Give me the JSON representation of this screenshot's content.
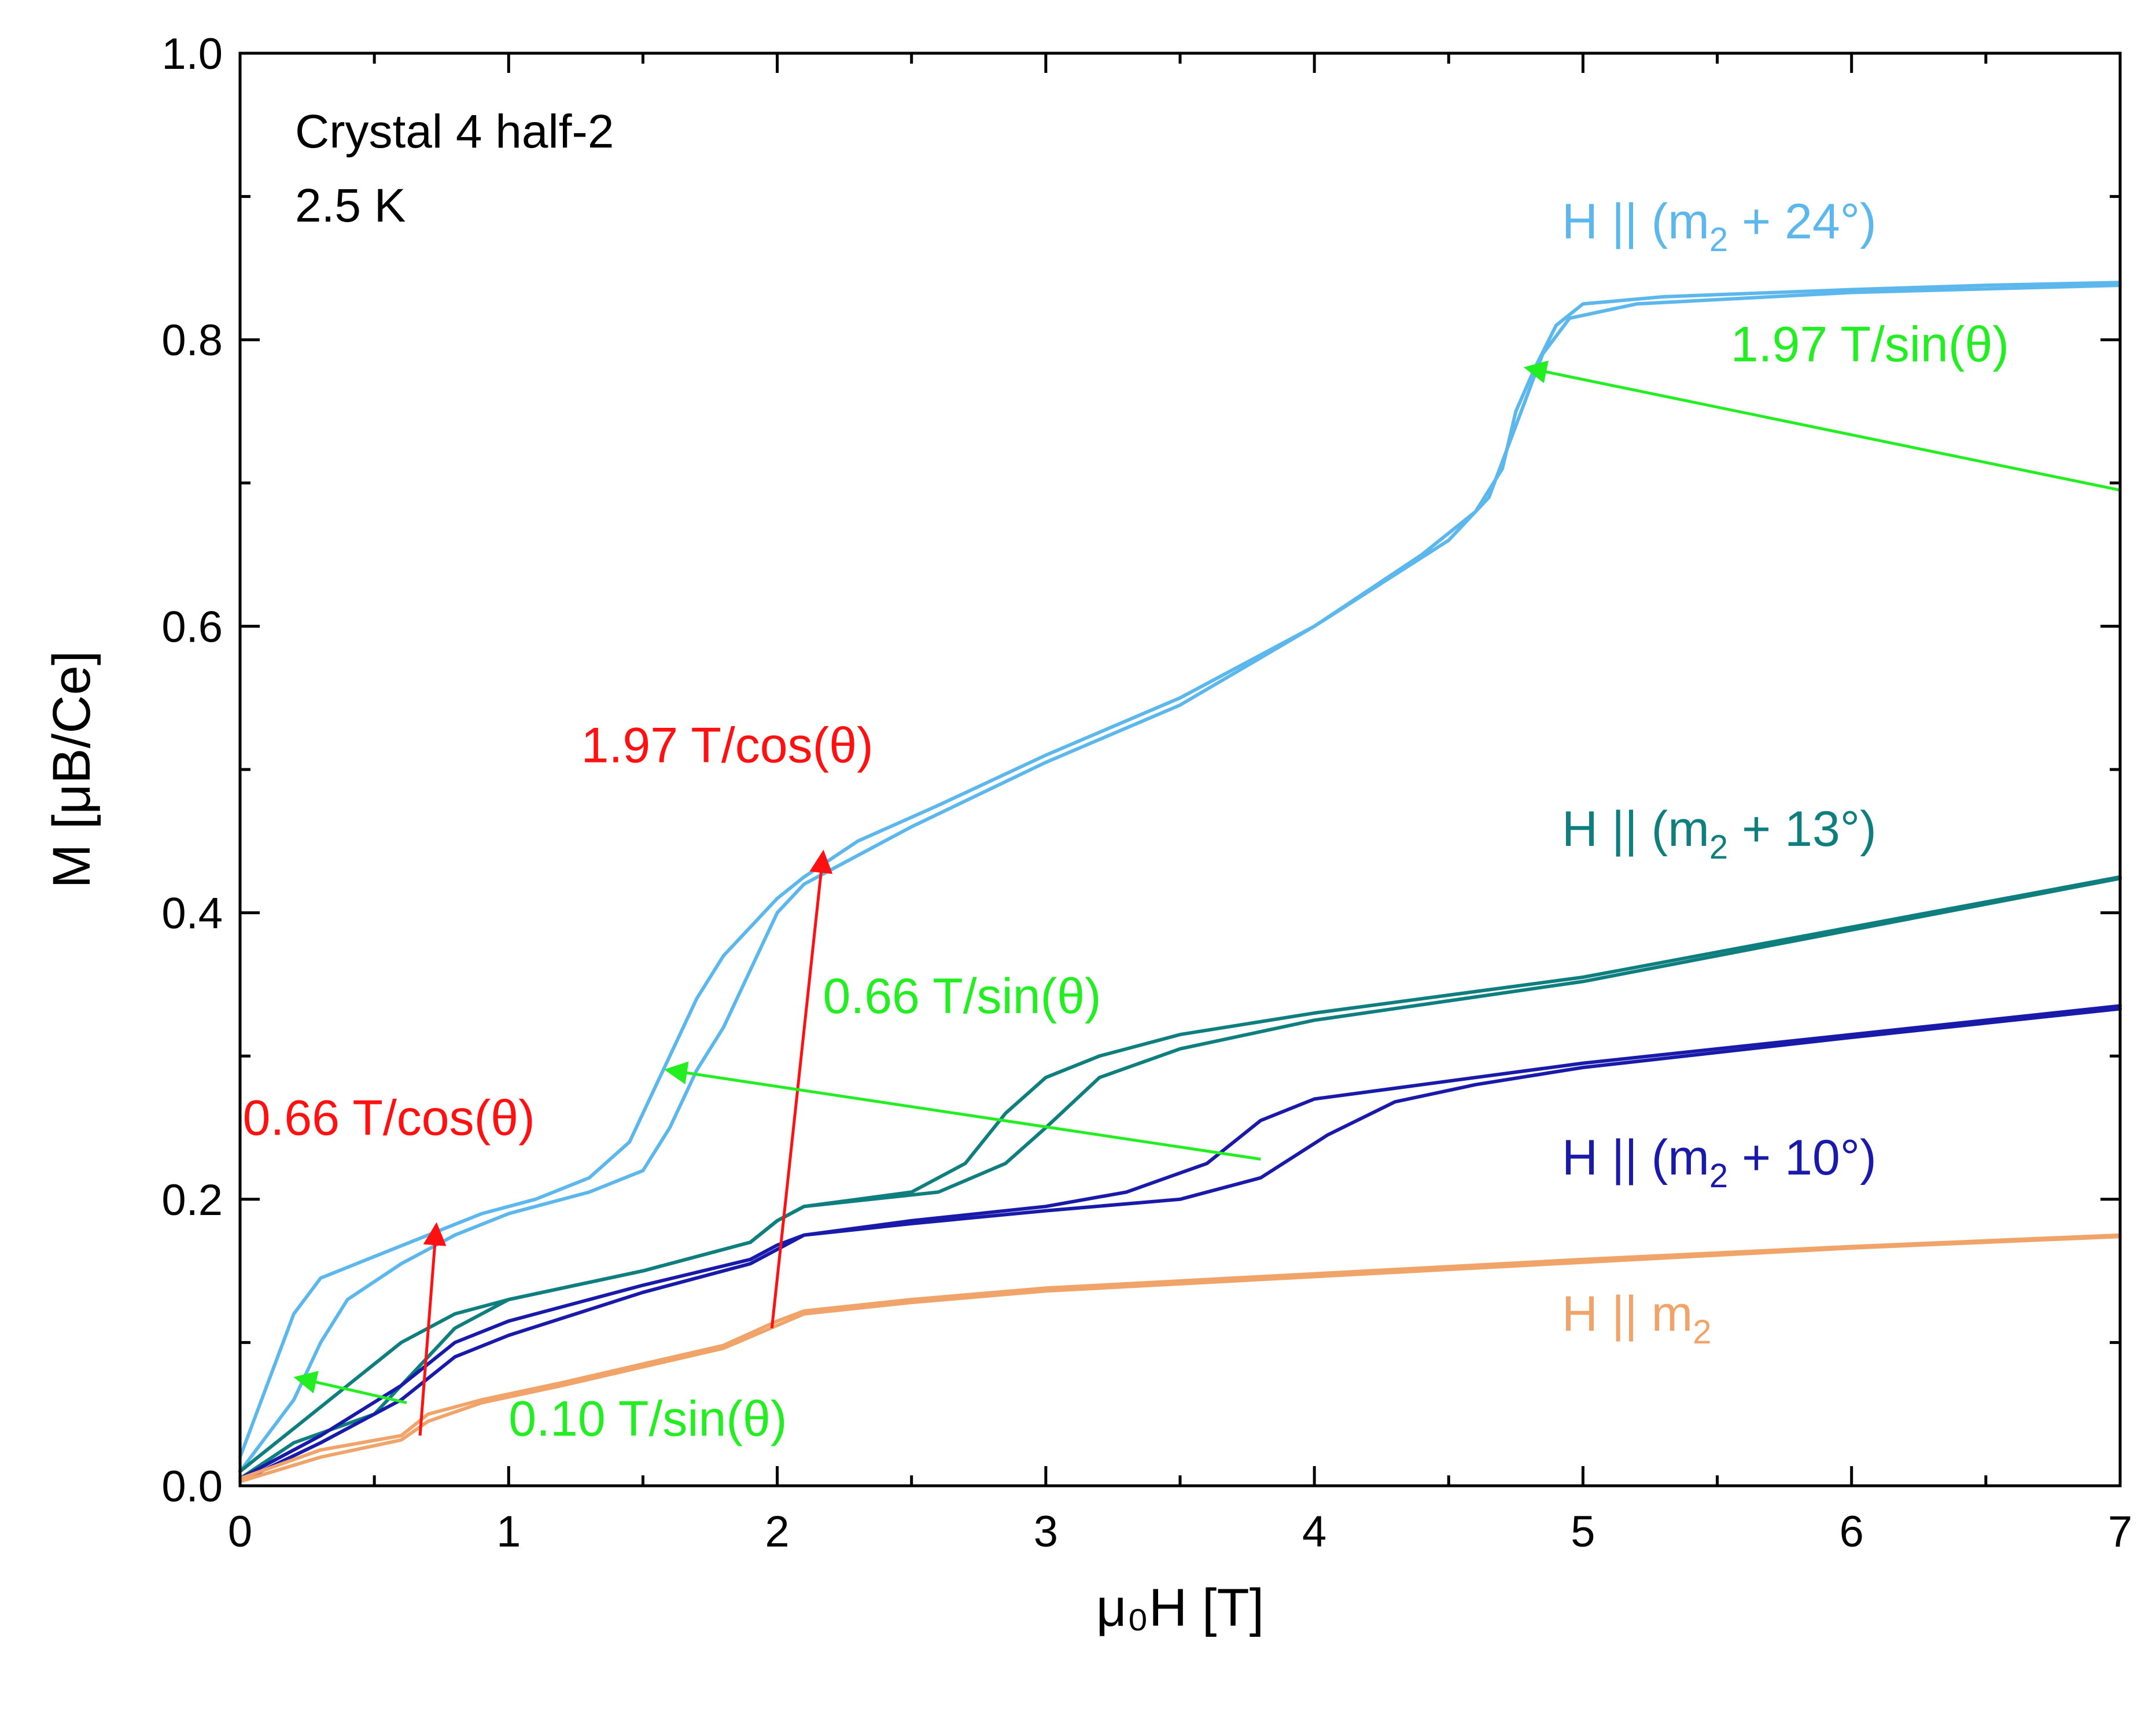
{
  "chart_data": {
    "type": "line",
    "xlabel": "μ₀H [T]",
    "ylabel": "M [μB/Ce]",
    "xlim": [
      0,
      7
    ],
    "ylim": [
      0,
      1.0
    ],
    "x_ticks": [
      "0",
      "1",
      "2",
      "3",
      "4",
      "5",
      "6",
      "7"
    ],
    "y_ticks": [
      "0.0",
      "0.2",
      "0.4",
      "0.6",
      "0.8",
      "1.0"
    ],
    "grid": false,
    "info_text": [
      "Crystal 4 half-2",
      "2.5 K"
    ],
    "series": [
      {
        "name": "H || (m2 + 24°)",
        "label_main": "H || (m",
        "label_sub": "2",
        "label_tail": " + 24°)",
        "color": "#5cb8ec",
        "branches": [
          [
            [
              0,
              0.02
            ],
            [
              0.1,
              0.07
            ],
            [
              0.2,
              0.12
            ],
            [
              0.3,
              0.145
            ],
            [
              0.5,
              0.16
            ],
            [
              0.7,
              0.175
            ],
            [
              0.9,
              0.19
            ],
            [
              1.1,
              0.2
            ],
            [
              1.3,
              0.215
            ],
            [
              1.45,
              0.24
            ],
            [
              1.55,
              0.28
            ],
            [
              1.6,
              0.3
            ],
            [
              1.7,
              0.34
            ],
            [
              1.8,
              0.37
            ],
            [
              1.9,
              0.39
            ],
            [
              2.0,
              0.41
            ],
            [
              2.1,
              0.425
            ],
            [
              2.3,
              0.45
            ],
            [
              2.6,
              0.475
            ],
            [
              3.0,
              0.51
            ],
            [
              3.5,
              0.55
            ],
            [
              4.0,
              0.6
            ],
            [
              4.4,
              0.65
            ],
            [
              4.6,
              0.68
            ],
            [
              4.7,
              0.71
            ],
            [
              4.75,
              0.75
            ],
            [
              4.82,
              0.78
            ],
            [
              4.9,
              0.81
            ],
            [
              5.0,
              0.825
            ],
            [
              5.3,
              0.83
            ],
            [
              6.0,
              0.835
            ],
            [
              6.5,
              0.838
            ],
            [
              7.0,
              0.84
            ]
          ],
          [
            [
              0,
              0.01
            ],
            [
              0.2,
              0.06
            ],
            [
              0.3,
              0.1
            ],
            [
              0.4,
              0.13
            ],
            [
              0.6,
              0.155
            ],
            [
              0.8,
              0.175
            ],
            [
              1.0,
              0.19
            ],
            [
              1.3,
              0.205
            ],
            [
              1.5,
              0.22
            ],
            [
              1.6,
              0.25
            ],
            [
              1.7,
              0.29
            ],
            [
              1.8,
              0.32
            ],
            [
              1.9,
              0.36
            ],
            [
              2.0,
              0.4
            ],
            [
              2.1,
              0.42
            ],
            [
              2.2,
              0.43
            ],
            [
              2.5,
              0.46
            ],
            [
              3.0,
              0.505
            ],
            [
              3.5,
              0.545
            ],
            [
              4.0,
              0.6
            ],
            [
              4.5,
              0.66
            ],
            [
              4.65,
              0.69
            ],
            [
              4.75,
              0.74
            ],
            [
              4.85,
              0.79
            ],
            [
              4.95,
              0.815
            ],
            [
              5.2,
              0.825
            ],
            [
              6.0,
              0.833
            ],
            [
              7.0,
              0.838
            ]
          ]
        ]
      },
      {
        "name": "H || (m2 + 13°)",
        "label_main": "H || (m",
        "label_sub": "2",
        "label_tail": " + 13°)",
        "color": "#0e7e7e",
        "branches": [
          [
            [
              0,
              0.01
            ],
            [
              0.2,
              0.04
            ],
            [
              0.4,
              0.07
            ],
            [
              0.6,
              0.1
            ],
            [
              0.8,
              0.12
            ],
            [
              1.0,
              0.13
            ],
            [
              1.5,
              0.15
            ],
            [
              1.9,
              0.17
            ],
            [
              2.0,
              0.185
            ],
            [
              2.1,
              0.195
            ],
            [
              2.5,
              0.205
            ],
            [
              2.7,
              0.225
            ],
            [
              2.85,
              0.26
            ],
            [
              3.0,
              0.285
            ],
            [
              3.2,
              0.3
            ],
            [
              3.5,
              0.315
            ],
            [
              4.0,
              0.33
            ],
            [
              5.0,
              0.355
            ],
            [
              6.0,
              0.39
            ],
            [
              7.0,
              0.425
            ]
          ],
          [
            [
              0,
              0.005
            ],
            [
              0.2,
              0.03
            ],
            [
              0.5,
              0.05
            ],
            [
              0.7,
              0.09
            ],
            [
              0.8,
              0.11
            ],
            [
              1.0,
              0.13
            ],
            [
              1.5,
              0.15
            ],
            [
              1.9,
              0.17
            ],
            [
              2.0,
              0.185
            ],
            [
              2.1,
              0.195
            ],
            [
              2.6,
              0.205
            ],
            [
              2.85,
              0.225
            ],
            [
              3.0,
              0.25
            ],
            [
              3.2,
              0.285
            ],
            [
              3.5,
              0.305
            ],
            [
              4.0,
              0.325
            ],
            [
              5.0,
              0.352
            ],
            [
              6.0,
              0.388
            ],
            [
              7.0,
              0.424
            ]
          ]
        ]
      },
      {
        "name": "H || (m2 + 10°)",
        "label_main": "H || (m",
        "label_sub": "2",
        "label_tail": " + 10°)",
        "color": "#1a1aaa",
        "branches": [
          [
            [
              0,
              0.005
            ],
            [
              0.3,
              0.035
            ],
            [
              0.6,
              0.07
            ],
            [
              0.8,
              0.1
            ],
            [
              1.0,
              0.115
            ],
            [
              1.5,
              0.14
            ],
            [
              1.9,
              0.158
            ],
            [
              2.0,
              0.168
            ],
            [
              2.1,
              0.175
            ],
            [
              2.5,
              0.185
            ],
            [
              3.0,
              0.195
            ],
            [
              3.3,
              0.205
            ],
            [
              3.6,
              0.225
            ],
            [
              3.8,
              0.255
            ],
            [
              4.0,
              0.27
            ],
            [
              4.4,
              0.28
            ],
            [
              5.0,
              0.295
            ],
            [
              6.0,
              0.315
            ],
            [
              7.0,
              0.335
            ]
          ],
          [
            [
              0,
              0.003
            ],
            [
              0.3,
              0.03
            ],
            [
              0.6,
              0.06
            ],
            [
              0.8,
              0.09
            ],
            [
              1.0,
              0.105
            ],
            [
              1.5,
              0.135
            ],
            [
              1.9,
              0.155
            ],
            [
              2.0,
              0.165
            ],
            [
              2.1,
              0.175
            ],
            [
              2.5,
              0.183
            ],
            [
              3.0,
              0.192
            ],
            [
              3.5,
              0.2
            ],
            [
              3.8,
              0.215
            ],
            [
              4.05,
              0.245
            ],
            [
              4.3,
              0.268
            ],
            [
              4.6,
              0.28
            ],
            [
              5.0,
              0.292
            ],
            [
              6.0,
              0.313
            ],
            [
              7.0,
              0.333
            ]
          ]
        ]
      },
      {
        "name": "H || m2",
        "label_main": "H || m",
        "label_sub": "2",
        "label_tail": "",
        "color": "#f0a46a",
        "branches": [
          [
            [
              0,
              0.005
            ],
            [
              0.3,
              0.025
            ],
            [
              0.6,
              0.035
            ],
            [
              0.7,
              0.05
            ],
            [
              0.9,
              0.06
            ],
            [
              1.2,
              0.072
            ],
            [
              1.5,
              0.085
            ],
            [
              1.8,
              0.098
            ],
            [
              2.0,
              0.115
            ],
            [
              2.1,
              0.122
            ],
            [
              2.5,
              0.13
            ],
            [
              3.0,
              0.138
            ],
            [
              4.0,
              0.148
            ],
            [
              5.0,
              0.158
            ],
            [
              6.0,
              0.167
            ],
            [
              7.0,
              0.175
            ]
          ],
          [
            [
              0,
              0.003
            ],
            [
              0.3,
              0.02
            ],
            [
              0.6,
              0.032
            ],
            [
              0.7,
              0.045
            ],
            [
              0.9,
              0.058
            ],
            [
              1.2,
              0.07
            ],
            [
              1.5,
              0.083
            ],
            [
              1.8,
              0.096
            ],
            [
              2.0,
              0.112
            ],
            [
              2.1,
              0.12
            ],
            [
              2.5,
              0.128
            ],
            [
              3.0,
              0.136
            ],
            [
              4.0,
              0.146
            ],
            [
              5.0,
              0.156
            ],
            [
              6.0,
              0.166
            ],
            [
              7.0,
              0.174
            ]
          ]
        ]
      }
    ],
    "annotations": [
      {
        "text": "1.97 T/sin(θ)",
        "color": "#22ee22",
        "at": [
          5.55,
          0.785
        ],
        "from": [
          7.0,
          0.695
        ],
        "to": [
          4.8,
          0.78
        ]
      },
      {
        "text": "1.97 T/cos(θ)",
        "color": "#ff1111",
        "at": [
          1.27,
          0.505
        ],
        "from": [
          1.98,
          0.11
        ],
        "to": [
          2.17,
          0.44
        ]
      },
      {
        "text": "0.66 T/sin(θ)",
        "color": "#22ee22",
        "at": [
          2.17,
          0.33
        ],
        "from": [
          3.8,
          0.228
        ],
        "to": [
          1.6,
          0.29
        ]
      },
      {
        "text": "0.66 T/cos(θ)",
        "color": "#ff1111",
        "at": [
          0.01,
          0.245
        ],
        "from": [
          0.67,
          0.035
        ],
        "to": [
          0.73,
          0.18
        ]
      },
      {
        "text": "0.10 T/sin(θ)",
        "color": "#22ee22",
        "at": [
          1.0,
          0.035
        ],
        "from": [
          0.62,
          0.058
        ],
        "to": [
          0.22,
          0.075
        ]
      }
    ]
  }
}
